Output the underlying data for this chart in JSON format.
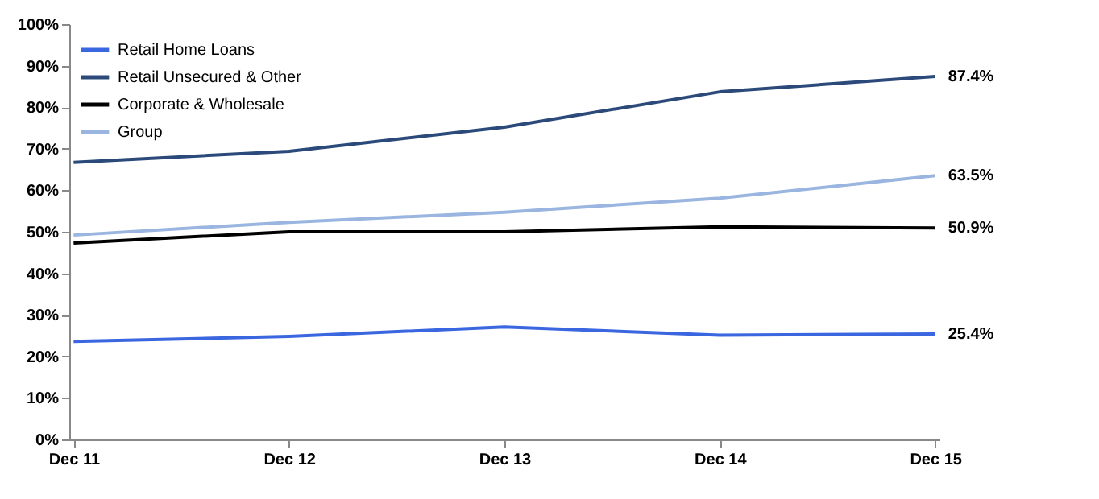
{
  "chart_data": {
    "type": "line",
    "categories": [
      "Dec 11",
      "Dec 12",
      "Dec 13",
      "Dec 14",
      "Dec 15"
    ],
    "series": [
      {
        "name": "Retail Home Loans",
        "color": "#3a66e0",
        "values": [
          23.6,
          24.8,
          27.1,
          25.1,
          25.4
        ],
        "value_labels": [
          null,
          null,
          null,
          null,
          "25.4%"
        ]
      },
      {
        "name": "Retail Unsecured & Other",
        "color": "#2b4a7a",
        "values": [
          66.7,
          69.4,
          75.2,
          83.7,
          87.4
        ],
        "value_labels": [
          null,
          null,
          null,
          null,
          "87.4%"
        ]
      },
      {
        "name": "Corporate & Wholesale",
        "color": "#000000",
        "values": [
          47.3,
          50.0,
          50.0,
          51.2,
          50.9
        ],
        "value_labels": [
          null,
          null,
          null,
          null,
          "50.9%"
        ]
      },
      {
        "name": "Group",
        "color": "#9ab5e0",
        "values": [
          49.2,
          52.3,
          54.7,
          58.1,
          63.5
        ],
        "value_labels": [
          null,
          null,
          null,
          null,
          "63.5%"
        ]
      }
    ],
    "ylim": [
      0,
      100
    ],
    "yticks": [
      {
        "value": 0,
        "label": "0%"
      },
      {
        "value": 10,
        "label": "10%"
      },
      {
        "value": 20,
        "label": "20%"
      },
      {
        "value": 30,
        "label": "30%"
      },
      {
        "value": 40,
        "label": "40%"
      },
      {
        "value": 50,
        "label": "50%"
      },
      {
        "value": 60,
        "label": "60%"
      },
      {
        "value": 70,
        "label": "70%"
      },
      {
        "value": 80,
        "label": "80%"
      },
      {
        "value": 90,
        "label": "90%"
      },
      {
        "value": 100,
        "label": "100%"
      }
    ],
    "grid": false,
    "legend": "top left",
    "marker": "none",
    "line_style": "solid"
  }
}
